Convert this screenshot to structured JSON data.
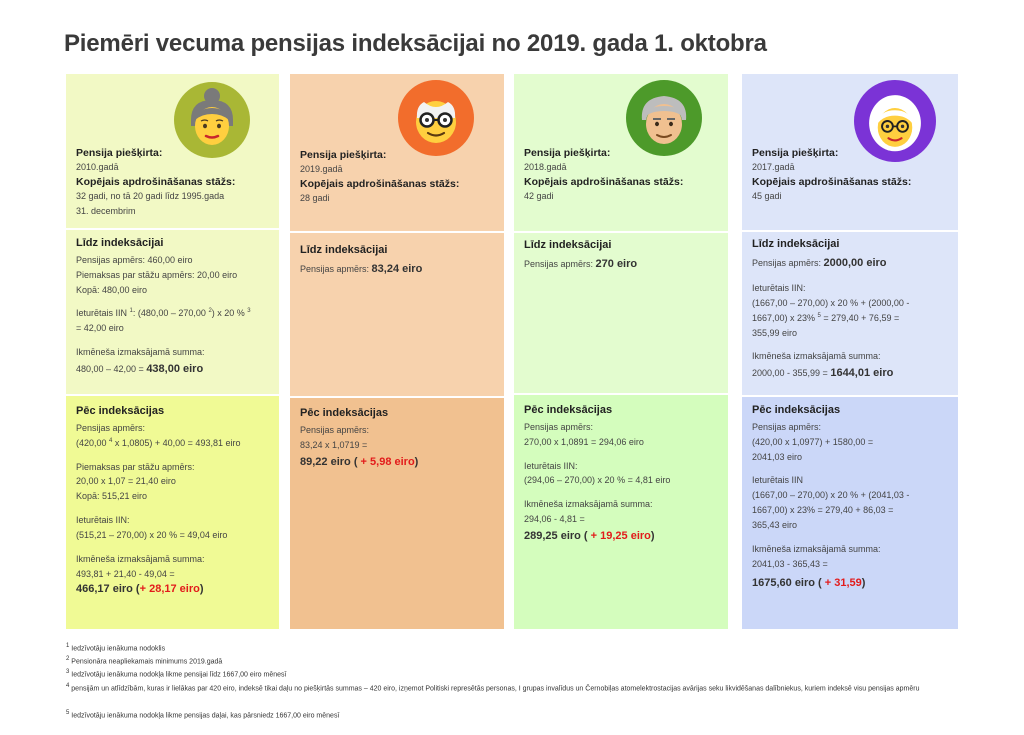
{
  "title": "Piemēri vecuma pensijas indeksācijai no 2019. gada 1. oktobra",
  "colors": {
    "c1_light": "#f2f9c5",
    "c1_dark": "#f0fa95",
    "c2_light": "#f7d2ad",
    "c2_dark": "#f1c190",
    "c3_light": "#e3fccf",
    "c3_dark": "#d4fdbd",
    "c4_light": "#dde5f9",
    "c4_dark": "#cbd7f8",
    "red": "#e21b1b"
  },
  "cards": [
    {
      "avatar_icon": "grandmother-bun-icon",
      "granted_label": "Pensija piešķirta:",
      "granted_year": "2010.gadā",
      "stazs_label": "Kopējais apdrošināšanas stāžs:",
      "stazs_lines": [
        "32 gadi, no tā 20 gadi līdz 1995.gada",
        "31. decembrim"
      ],
      "pre": {
        "heading": "Līdz indeksācijai",
        "lines": [
          "Pensijas apmērs: 460,00 eiro",
          "Piemaksas par stāžu apmērs: 20,00 eiro",
          "Kopā: 480,00 eiro"
        ],
        "iin_prefix": "Ieturētais IIN ",
        "iin_sup1": "1",
        "iin_mid": ": (480,00 – 270,00 ",
        "iin_sup2": "2",
        "iin_mid2": ") x 20 % ",
        "iin_sup3": "3",
        "iin_end": "= 42,00 eiro",
        "monthly_label": "Ikmēneša izmaksājamā summa:",
        "monthly_calc": "480,00 – 42,00 = ",
        "monthly_value": "438,00 eiro"
      },
      "post": {
        "heading": "Pēc indeksācijas",
        "pension_label": "Pensijas apmērs:",
        "pension_calc_a": "(420,00 ",
        "pension_sup": "4",
        "pension_calc_b": " x 1,0805) + 40,00 = 493,81 eiro",
        "supp_label": "Piemaksas par stāžu apmērs:",
        "supp_calc": "20,00 x 1,07 = 21,40 eiro",
        "total": "Kopā: 515,21 eiro",
        "iin_label": "Ieturētais IIN:",
        "iin_calc": "(515,21 – 270,00) x 20 % = 49,04 eiro",
        "monthly_label": "Ikmēneša izmaksājamā summa:",
        "monthly_calc": "493,81 + 21,40 - 49,04 =",
        "result": "466,17 eiro",
        "paren_open": " (",
        "diff": "+ 28,17 eiro",
        "paren_close": ")"
      }
    },
    {
      "avatar_icon": "grandfather-glasses-icon",
      "granted_label": "Pensija piešķirta:",
      "granted_year": "2019.gadā",
      "stazs_label": "Kopējais apdrošināšanas stāžs:",
      "stazs_lines": [
        "28 gadi"
      ],
      "pre": {
        "heading": "Līdz indeksācijai",
        "pension_prefix": "Pensijas apmērs: ",
        "pension_value": "83,24 eiro"
      },
      "post": {
        "heading": "Pēc indeksācijas",
        "pension_label": "Pensijas apmērs:",
        "pension_calc": "83,24 x 1,0719 =",
        "result": "89,22 eiro",
        "paren_open": " ( ",
        "diff": "+ 5,98 eiro",
        "paren_close": ")"
      }
    },
    {
      "avatar_icon": "grandfather-icon",
      "granted_label": "Pensija piešķirta:",
      "granted_year": "2018.gadā",
      "stazs_label": "Kopējais apdrošināšanas stāžs:",
      "stazs_lines": [
        "42 gadi"
      ],
      "pre": {
        "heading": "Līdz indeksācijai",
        "pension_prefix": "Pensijas apmērs: ",
        "pension_value": "270 eiro"
      },
      "post": {
        "heading": "Pēc indeksācijas",
        "pension_label": "Pensijas apmērs:",
        "pension_calc": "270,00 x 1,0891 = 294,06 eiro",
        "iin_label": "Ieturētais IIN:",
        "iin_calc": "(294,06 – 270,00) x 20 % = 4,81 eiro",
        "monthly_label": "Ikmēneša izmaksājamā summa:",
        "monthly_calc": "294,06 - 4,81 =",
        "result": "289,25 eiro",
        "paren_open": " ( ",
        "diff": "+ 19,25 eiro",
        "paren_close": ")"
      }
    },
    {
      "avatar_icon": "grandmother-glasses-icon",
      "granted_label": "Pensija piešķirta:",
      "granted_year": "2017.gadā",
      "stazs_label": "Kopējais apdrošināšanas stāžs:",
      "stazs_lines": [
        "45 gadi"
      ],
      "pre": {
        "heading": "Līdz indeksācijai",
        "pension_prefix": "Pensijas apmērs: ",
        "pension_value": "2000,00 eiro",
        "iin_label": "Ieturētais IIN:",
        "iin_line1": "(1667,00 – 270,00) x 20 % + (2000,00 -",
        "iin_line2a": "1667,00) x 23% ",
        "iin_sup": "5",
        "iin_line2b": " = 279,40 + 76,59 =",
        "iin_line3": "355,99 eiro",
        "monthly_label": "Ikmēneša izmaksājamā summa:",
        "monthly_calc": "2000,00 - 355,99 = ",
        "monthly_value": "1644,01 eiro"
      },
      "post": {
        "heading": "Pēc indeksācijas",
        "pension_label": "Pensijas apmērs:",
        "pension_calc1": "(420,00 x 1,0977) + 1580,00 =",
        "pension_calc2": "2041,03 eiro",
        "iin_label": "Ieturētais IIN",
        "iin_line1": "(1667,00 – 270,00) x 20 % + (2041,03 -",
        "iin_line2": "1667,00) x 23% = 279,40 + 86,03 =",
        "iin_line3": "365,43 eiro",
        "monthly_label": "Ikmēneša izmaksājamā summa:",
        "monthly_calc": "2041,03 - 365,43 =",
        "result": "1675,60 eiro",
        "paren_open": " ( ",
        "diff": "+ 31,59",
        "paren_close": ")"
      }
    }
  ],
  "footnotes": [
    {
      "num": "1",
      "text": " Iedzīvotāju ienākuma nodoklis"
    },
    {
      "num": "2",
      "text": " Pensionāra neapliekamais minimums 2019.gadā"
    },
    {
      "num": "3",
      "text": " Iedzīvotāju ienākuma nodokļa likme pensijai līdz 1667,00 eiro mēnesī"
    },
    {
      "num": "4",
      "text": " pensijām un atlīdzībām, kuras ir lielākas par 420 eiro, indeksē tikai daļu no piešķirtās summas – 420 eiro, izņemot Politiski represētās personas, I grupas invalīdus un Černobiļas  atomelektrostacijas avārijas seku likvidēšanas dalībniekus, kuriem indeksē visu  pensijas apmēru"
    },
    {
      "num": "5",
      "text": " Iedzīvotāju ienākuma nodokļa likme pensijas daļai, kas pārsniedz 1667,00 eiro mēnesī"
    }
  ]
}
